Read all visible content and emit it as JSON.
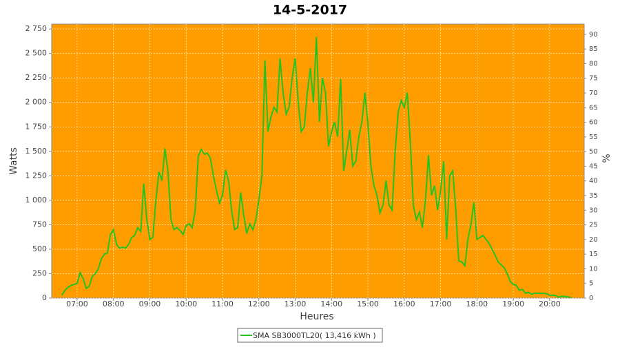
{
  "chart_data": {
    "type": "line",
    "title": "14-5-2017",
    "x_label": "Heures",
    "y_label": "Watts",
    "y2_label": "%",
    "xlim": [
      "06:18",
      "20:57"
    ],
    "xticks": [
      "07:00",
      "08:00",
      "09:00",
      "10:00",
      "11:00",
      "12:00",
      "13:00",
      "14:00",
      "15:00",
      "16:00",
      "17:00",
      "18:00",
      "19:00",
      "20:00"
    ],
    "ylim": [
      0,
      2800
    ],
    "yticks": [
      0,
      250,
      500,
      750,
      {
        "value": 1000,
        "label": "1 000"
      },
      {
        "value": 1250,
        "label": "1 250"
      },
      {
        "value": 1500,
        "label": "1 500"
      },
      {
        "value": 1750,
        "label": "1 750"
      },
      {
        "value": 2000,
        "label": "2 000"
      },
      {
        "value": 2250,
        "label": "2 250"
      },
      {
        "value": 2500,
        "label": "2 500"
      },
      {
        "value": 2750,
        "label": "2 750"
      }
    ],
    "y2lim": [
      0,
      93.5
    ],
    "y2ticks": [
      0,
      5,
      10,
      15,
      20,
      25,
      30,
      35,
      40,
      45,
      50,
      55,
      60,
      65,
      70,
      75,
      80,
      85,
      90
    ],
    "grid": true,
    "background": "#ff9c00",
    "legend": "bottom",
    "x": [
      "06:35",
      "06:40",
      "06:45",
      "06:50",
      "06:55",
      "07:00",
      "07:05",
      "07:10",
      "07:15",
      "07:20",
      "07:25",
      "07:30",
      "07:35",
      "07:40",
      "07:45",
      "07:50",
      "07:55",
      "08:00",
      "08:05",
      "08:10",
      "08:15",
      "08:20",
      "08:25",
      "08:30",
      "08:35",
      "08:40",
      "08:45",
      "08:50",
      "08:55",
      "09:00",
      "09:05",
      "09:10",
      "09:15",
      "09:20",
      "09:25",
      "09:30",
      "09:35",
      "09:40",
      "09:45",
      "09:50",
      "09:55",
      "10:00",
      "10:05",
      "10:10",
      "10:15",
      "10:20",
      "10:25",
      "10:30",
      "10:35",
      "10:40",
      "10:45",
      "10:50",
      "10:55",
      "11:00",
      "11:05",
      "11:10",
      "11:15",
      "11:20",
      "11:25",
      "11:30",
      "11:35",
      "11:40",
      "11:45",
      "11:50",
      "11:55",
      "12:00",
      "12:05",
      "12:10",
      "12:15",
      "12:20",
      "12:25",
      "12:30",
      "12:35",
      "12:40",
      "12:45",
      "12:50",
      "12:55",
      "13:00",
      "13:05",
      "13:10",
      "13:15",
      "13:20",
      "13:25",
      "13:30",
      "13:35",
      "13:40",
      "13:45",
      "13:50",
      "13:55",
      "14:00",
      "14:05",
      "14:10",
      "14:15",
      "14:20",
      "14:25",
      "14:30",
      "14:35",
      "14:40",
      "14:45",
      "14:50",
      "14:55",
      "15:00",
      "15:05",
      "15:10",
      "15:15",
      "15:20",
      "15:25",
      "15:30",
      "15:35",
      "15:40",
      "15:45",
      "15:50",
      "15:55",
      "16:00",
      "16:05",
      "16:10",
      "16:15",
      "16:20",
      "16:25",
      "16:30",
      "16:35",
      "16:40",
      "16:45",
      "16:50",
      "16:55",
      "17:00",
      "17:05",
      "17:10",
      "17:15",
      "17:20",
      "17:25",
      "17:30",
      "17:35",
      "17:40",
      "17:45",
      "17:50",
      "17:55",
      "18:00",
      "18:05",
      "18:10",
      "18:15",
      "18:20",
      "18:25",
      "18:30",
      "18:35",
      "18:40",
      "18:45",
      "18:50",
      "18:55",
      "19:00",
      "19:05",
      "19:10",
      "19:15",
      "19:20",
      "19:25",
      "19:30",
      "19:35",
      "19:40",
      "19:45",
      "19:50",
      "19:55",
      "20:00",
      "20:05",
      "20:10",
      "20:15",
      "20:20",
      "20:25",
      "20:30",
      "20:35"
    ],
    "series": [
      {
        "name": "SMA SB3000TL20( 13,416 kWh )",
        "color": "#22c322",
        "values": [
          30,
          80,
          110,
          130,
          140,
          150,
          260,
          200,
          100,
          120,
          220,
          250,
          300,
          400,
          450,
          460,
          650,
          700,
          550,
          510,
          520,
          510,
          550,
          620,
          640,
          720,
          680,
          1170,
          800,
          600,
          620,
          1000,
          1290,
          1200,
          1530,
          1300,
          800,
          700,
          720,
          690,
          650,
          740,
          760,
          720,
          900,
          1450,
          1520,
          1470,
          1480,
          1430,
          1250,
          1100,
          970,
          1050,
          1310,
          1200,
          900,
          700,
          720,
          1080,
          850,
          660,
          760,
          700,
          800,
          1000,
          1250,
          2430,
          1700,
          1850,
          1950,
          1900,
          2450,
          2100,
          1880,
          1950,
          2250,
          2450,
          2000,
          1700,
          1750,
          2100,
          2350,
          2000,
          2670,
          1800,
          2250,
          2100,
          1550,
          1700,
          1800,
          1650,
          2240,
          1300,
          1500,
          1720,
          1350,
          1400,
          1650,
          1800,
          2100,
          1780,
          1350,
          1150,
          1050,
          870,
          950,
          1200,
          950,
          900,
          1500,
          1900,
          2020,
          1950,
          2100,
          1600,
          950,
          800,
          880,
          720,
          1000,
          1460,
          1050,
          1150,
          900,
          1100,
          1400,
          600,
          1250,
          1300,
          900,
          380,
          370,
          330,
          600,
          750,
          980,
          600,
          620,
          640,
          600,
          560,
          500,
          440,
          370,
          340,
          310,
          250,
          170,
          140,
          130,
          80,
          90,
          50,
          60,
          40,
          50,
          50,
          50,
          50,
          45,
          30,
          30,
          25,
          10,
          20,
          15,
          15,
          5
        ]
      }
    ]
  }
}
